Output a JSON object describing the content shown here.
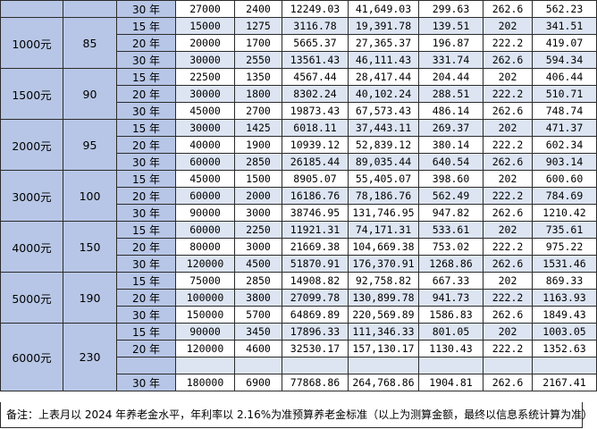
{
  "partial_row": {
    "term": "30 年",
    "values": [
      "27000",
      "2400",
      "12249.03",
      "41,649.03",
      "299.63",
      "262.6",
      "562.23"
    ]
  },
  "groups": [
    {
      "standard": "1000元",
      "base": "85",
      "rows": [
        {
          "term": "15 年",
          "values": [
            "15000",
            "1275",
            "3116.78",
            "19,391.78",
            "139.51",
            "202",
            "341.51"
          ]
        },
        {
          "term": "20 年",
          "values": [
            "20000",
            "1700",
            "5665.37",
            "27,365.37",
            "196.87",
            "222.2",
            "419.07"
          ]
        },
        {
          "term": "30 年",
          "values": [
            "30000",
            "2550",
            "13561.43",
            "46,111.43",
            "331.74",
            "262.6",
            "594.34"
          ]
        }
      ]
    },
    {
      "standard": "1500元",
      "base": "90",
      "rows": [
        {
          "term": "15 年",
          "values": [
            "22500",
            "1350",
            "4567.44",
            "28,417.44",
            "204.44",
            "202",
            "406.44"
          ]
        },
        {
          "term": "20 年",
          "values": [
            "30000",
            "1800",
            "8302.24",
            "40,102.24",
            "288.51",
            "222.2",
            "510.71"
          ]
        },
        {
          "term": "30 年",
          "values": [
            "45000",
            "2700",
            "19873.43",
            "67,573.43",
            "486.14",
            "262.6",
            "748.74"
          ]
        }
      ]
    },
    {
      "standard": "2000元",
      "base": "95",
      "rows": [
        {
          "term": "15 年",
          "values": [
            "30000",
            "1425",
            "6018.11",
            "37,443.11",
            "269.37",
            "202",
            "471.37"
          ]
        },
        {
          "term": "20 年",
          "values": [
            "40000",
            "1900",
            "10939.12",
            "52,839.12",
            "380.14",
            "222.2",
            "602.34"
          ]
        },
        {
          "term": "30 年",
          "values": [
            "60000",
            "2850",
            "26185.44",
            "89,035.44",
            "640.54",
            "262.6",
            "903.14"
          ]
        }
      ]
    },
    {
      "standard": "3000元",
      "base": "100",
      "rows": [
        {
          "term": "15 年",
          "values": [
            "45000",
            "1500",
            "8905.07",
            "55,405.07",
            "398.60",
            "202",
            "600.60"
          ]
        },
        {
          "term": "20 年",
          "values": [
            "60000",
            "2000",
            "16186.76",
            "78,186.76",
            "562.49",
            "222.2",
            "784.69"
          ]
        },
        {
          "term": "30 年",
          "values": [
            "90000",
            "3000",
            "38746.95",
            "131,746.95",
            "947.82",
            "262.6",
            "1210.42"
          ]
        }
      ]
    },
    {
      "standard": "4000元",
      "base": "150",
      "rows": [
        {
          "term": "15 年",
          "values": [
            "60000",
            "2250",
            "11921.31",
            "74,171.31",
            "533.61",
            "202",
            "735.61"
          ]
        },
        {
          "term": "20 年",
          "values": [
            "80000",
            "3000",
            "21669.38",
            "104,669.38",
            "753.02",
            "222.2",
            "975.22"
          ]
        },
        {
          "term": "30 年",
          "values": [
            "120000",
            "4500",
            "51870.91",
            "176,370.91",
            "1268.86",
            "262.6",
            "1531.46"
          ]
        }
      ]
    },
    {
      "standard": "5000元",
      "base": "190",
      "rows": [
        {
          "term": "15 年",
          "values": [
            "75000",
            "2850",
            "14908.82",
            "92,758.82",
            "667.33",
            "202",
            "869.33"
          ]
        },
        {
          "term": "20 年",
          "values": [
            "100000",
            "3800",
            "27099.78",
            "130,899.78",
            "941.73",
            "222.2",
            "1163.93"
          ]
        },
        {
          "term": "30 年",
          "values": [
            "150000",
            "5700",
            "64869.89",
            "220,569.89",
            "1586.83",
            "262.6",
            "1849.43"
          ]
        }
      ]
    },
    {
      "standard": "6000元",
      "base": "230",
      "rows": [
        {
          "term": "15 年",
          "values": [
            "90000",
            "3450",
            "17896.33",
            "111,346.33",
            "801.05",
            "202",
            "1003.05"
          ]
        },
        {
          "term": "20 年",
          "values": [
            "120000",
            "4600",
            "32530.17",
            "157,130.17",
            "1130.43",
            "222.2",
            "1352.63"
          ]
        },
        {
          "term": "",
          "values": [
            "",
            "",
            "",
            "",
            "",
            "",
            ""
          ]
        },
        {
          "term": "30 年",
          "values": [
            "180000",
            "6900",
            "77868.86",
            "264,768.86",
            "1904.81",
            "262.6",
            "2167.41"
          ]
        }
      ]
    }
  ],
  "note": "备注：上表月以 2024 年养老金水平，年利率以 2.16%为准预算养老金标准（以上为测算金额，最终以信息系统计算为准）"
}
